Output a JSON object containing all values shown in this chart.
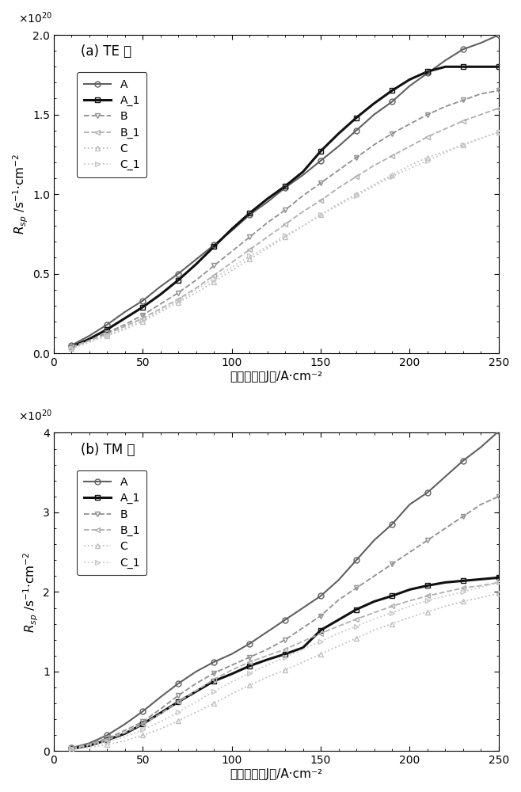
{
  "x_points": [
    10,
    20,
    30,
    40,
    50,
    60,
    70,
    80,
    90,
    100,
    110,
    120,
    130,
    140,
    150,
    160,
    170,
    180,
    190,
    200,
    210,
    220,
    230,
    240,
    250
  ],
  "TE": {
    "A": [
      0.05,
      0.11,
      0.18,
      0.26,
      0.33,
      0.42,
      0.5,
      0.59,
      0.68,
      0.77,
      0.87,
      0.95,
      1.04,
      1.12,
      1.21,
      1.3,
      1.4,
      1.5,
      1.58,
      1.68,
      1.76,
      1.84,
      1.91,
      1.95,
      2.0
    ],
    "A_1": [
      0.04,
      0.09,
      0.15,
      0.22,
      0.29,
      0.37,
      0.46,
      0.56,
      0.67,
      0.78,
      0.88,
      0.97,
      1.05,
      1.14,
      1.27,
      1.38,
      1.48,
      1.57,
      1.65,
      1.72,
      1.77,
      1.8,
      1.8,
      1.8,
      1.8
    ],
    "B": [
      0.04,
      0.08,
      0.13,
      0.18,
      0.24,
      0.31,
      0.38,
      0.46,
      0.55,
      0.64,
      0.73,
      0.82,
      0.9,
      0.99,
      1.07,
      1.15,
      1.23,
      1.31,
      1.38,
      1.44,
      1.5,
      1.55,
      1.59,
      1.63,
      1.65
    ],
    "B_1": [
      0.04,
      0.08,
      0.12,
      0.17,
      0.22,
      0.28,
      0.34,
      0.41,
      0.49,
      0.57,
      0.65,
      0.73,
      0.81,
      0.89,
      0.96,
      1.04,
      1.11,
      1.18,
      1.24,
      1.3,
      1.36,
      1.41,
      1.46,
      1.5,
      1.54
    ],
    "C": [
      0.03,
      0.07,
      0.11,
      0.15,
      0.2,
      0.26,
      0.32,
      0.38,
      0.45,
      0.52,
      0.59,
      0.66,
      0.73,
      0.8,
      0.87,
      0.94,
      1.0,
      1.06,
      1.12,
      1.18,
      1.23,
      1.27,
      1.31,
      1.35,
      1.39
    ],
    "C_1": [
      0.03,
      0.07,
      0.11,
      0.16,
      0.21,
      0.27,
      0.33,
      0.4,
      0.47,
      0.54,
      0.61,
      0.67,
      0.74,
      0.8,
      0.87,
      0.93,
      0.99,
      1.05,
      1.11,
      1.16,
      1.21,
      1.26,
      1.31,
      1.35,
      1.39
    ]
  },
  "TM": {
    "A": [
      0.04,
      0.1,
      0.2,
      0.34,
      0.5,
      0.68,
      0.85,
      1.0,
      1.12,
      1.22,
      1.35,
      1.5,
      1.65,
      1.8,
      1.95,
      2.15,
      2.4,
      2.65,
      2.85,
      3.1,
      3.25,
      3.45,
      3.65,
      3.82,
      4.02
    ],
    "A_1": [
      0.03,
      0.07,
      0.14,
      0.22,
      0.34,
      0.48,
      0.62,
      0.75,
      0.88,
      0.97,
      1.07,
      1.15,
      1.22,
      1.3,
      1.52,
      1.65,
      1.78,
      1.88,
      1.95,
      2.03,
      2.08,
      2.12,
      2.14,
      2.16,
      2.18
    ],
    "B": [
      0.04,
      0.09,
      0.16,
      0.26,
      0.37,
      0.53,
      0.7,
      0.85,
      0.98,
      1.08,
      1.18,
      1.28,
      1.4,
      1.55,
      1.7,
      1.9,
      2.05,
      2.2,
      2.35,
      2.5,
      2.65,
      2.8,
      2.95,
      3.1,
      3.2
    ],
    "B_1": [
      0.03,
      0.08,
      0.14,
      0.23,
      0.34,
      0.47,
      0.62,
      0.76,
      0.9,
      1.02,
      1.12,
      1.2,
      1.28,
      1.38,
      1.48,
      1.57,
      1.66,
      1.74,
      1.82,
      1.89,
      1.95,
      2.0,
      2.05,
      2.08,
      2.12
    ],
    "C": [
      0.02,
      0.05,
      0.08,
      0.13,
      0.2,
      0.28,
      0.38,
      0.49,
      0.6,
      0.72,
      0.83,
      0.93,
      1.02,
      1.12,
      1.22,
      1.32,
      1.42,
      1.52,
      1.6,
      1.68,
      1.75,
      1.82,
      1.88,
      1.93,
      1.98
    ],
    "C_1": [
      0.03,
      0.07,
      0.12,
      0.18,
      0.27,
      0.37,
      0.49,
      0.62,
      0.75,
      0.87,
      0.98,
      1.08,
      1.18,
      1.28,
      1.38,
      1.48,
      1.57,
      1.66,
      1.74,
      1.82,
      1.89,
      1.95,
      2.0,
      2.06,
      2.12
    ]
  },
  "colors": {
    "A": "#606060",
    "A_1": "#101010",
    "B": "#909090",
    "B_1": "#b0b0b0",
    "C": "#c0c0c0",
    "C_1": "#c8c8c8"
  },
  "linestyles": {
    "A": "-",
    "A_1": "-",
    "B": "--",
    "B_1": "--",
    "C": ":",
    "C_1": ":"
  },
  "markers": {
    "A": "o",
    "A_1": "s",
    "B": "v",
    "B_1": "<",
    "C": "^",
    "C_1": ">"
  },
  "linewidths": {
    "A": 1.5,
    "A_1": 2.2,
    "B": 1.3,
    "B_1": 1.3,
    "C": 1.3,
    "C_1": 1.3
  },
  "markersize": 5,
  "xlabel": "电流密度（J）/A·cm⁻²",
  "ylabel_rsp": "$R_{sp}$",
  "ylabel_units": "/s⁻¹·cm⁻²",
  "title_a": "(a) TE 模",
  "title_b": "(b) TM 模",
  "xlim": [
    0,
    250
  ],
  "TE_ylim": [
    0,
    2.0
  ],
  "TM_ylim": [
    0,
    4.0
  ],
  "x_ticks": [
    0,
    50,
    100,
    150,
    200,
    250
  ],
  "TE_y_ticks": [
    0,
    0.5,
    1.0,
    1.5,
    2.0
  ],
  "TM_y_ticks": [
    0,
    1,
    2,
    3,
    4
  ],
  "series_order": [
    "A",
    "A_1",
    "B",
    "B_1",
    "C",
    "C_1"
  ]
}
